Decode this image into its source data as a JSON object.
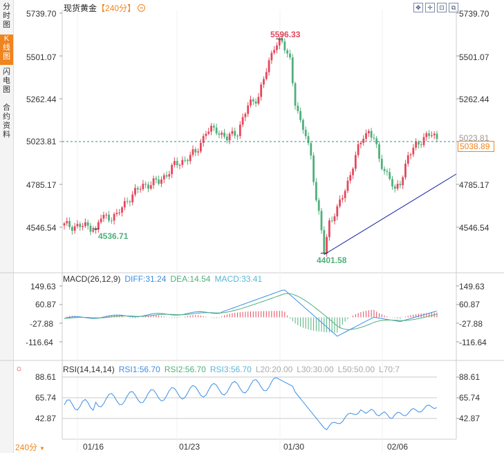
{
  "side_tabs": [
    {
      "label": "分时图",
      "active": false
    },
    {
      "label": "K线图",
      "active": true
    },
    {
      "label": "闪电图",
      "active": false
    },
    {
      "label": "合约资料",
      "active": false
    }
  ],
  "header": {
    "title": "现货黄金",
    "timeframe": "【240分】"
  },
  "toolbar": {
    "icons": [
      "expand-icon",
      "crosshair-icon",
      "line-chart-icon",
      "fullscreen-icon"
    ]
  },
  "bottom": {
    "timeframe": "240分"
  },
  "chart_data": [
    {
      "type": "candlestick",
      "title": "现货黄金",
      "y_ticks": [
        "5739.70",
        "5501.07",
        "5262.44",
        "5023.81",
        "4785.17",
        "4546.54"
      ],
      "y_tick_values": [
        5739.7,
        5501.07,
        5262.44,
        5023.81,
        4785.17,
        4546.54
      ],
      "x_ticks": [
        "01/16",
        "01/23",
        "01/30",
        "02/06"
      ],
      "annotations": {
        "high": "5596.33",
        "low_left": "4536.71",
        "low": "4401.58",
        "current": "5038.89",
        "dashed_level": "5023.81"
      },
      "colors": {
        "up": "#e5475b",
        "down": "#4fb07a",
        "trendline": "#1f2aa6",
        "current": "#f0841e"
      }
    },
    {
      "type": "macd",
      "title": "MACD(26,12,9)",
      "diff_label": "DIFF:31.24",
      "dea_label": "DEA:14.54",
      "macd_label": "MACD:33.41",
      "y_ticks": [
        "149.63",
        "60.87",
        "-27.88",
        "-116.64"
      ],
      "y_tick_values": [
        149.63,
        60.87,
        -27.88,
        -116.64
      ]
    },
    {
      "type": "rsi",
      "title": "RSI(14,14,14)",
      "rsi1_label": "RSI1:56.70",
      "rsi2_label": "RSI2:56.70",
      "rsi3_label": "RSI3:56.70",
      "levels_label": [
        "L20:20.00",
        "L30:30.00",
        "L50:50.00",
        "L70:7"
      ],
      "y_ticks": [
        "88.61",
        "65.74",
        "42.87"
      ],
      "y_tick_values": [
        88.61,
        65.74,
        42.87
      ]
    }
  ]
}
